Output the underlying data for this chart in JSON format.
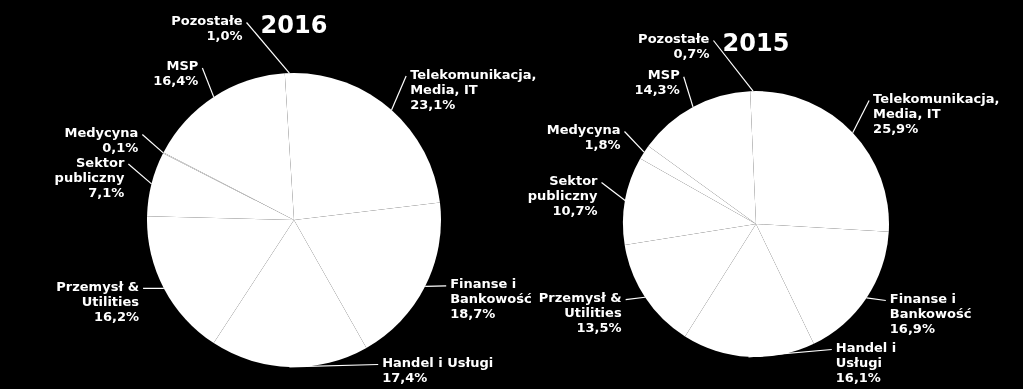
{
  "chart_data": [
    {
      "type": "pie",
      "title": "2016",
      "categories": [
        "Telekomunikacja,\nMedia, IT",
        "Finanse i\nBankowość",
        "Handel i Usługi",
        "Przemysł &\nUtilities",
        "Sektor\npubliczny",
        "Medycyna",
        "MSP",
        "Pozostałe"
      ],
      "values": [
        23.1,
        18.7,
        17.4,
        16.2,
        7.1,
        0.1,
        16.4,
        1.0
      ],
      "value_labels": [
        "23,1%",
        "18,7%",
        "17,4%",
        "16,2%",
        "7,1%",
        "0,1%",
        "16,4%",
        "1,0%"
      ],
      "colors": [
        "#ffffff",
        "#ffffff",
        "#ffffff",
        "#ffffff",
        "#ffffff",
        "#ffffff",
        "#ffffff",
        "#ffffff"
      ]
    },
    {
      "type": "pie",
      "title": "2015",
      "categories": [
        "Telekomunikacja,\nMedia, IT",
        "Finanse i\nBankowość",
        "Handel i\nUsługi",
        "Przemysł &\nUtilities",
        "Sektor\npubliczny",
        "Medycyna",
        "MSP",
        "Pozostałe"
      ],
      "values": [
        25.9,
        16.9,
        16.1,
        13.5,
        10.7,
        1.8,
        14.3,
        0.7
      ],
      "value_labels": [
        "25,9%",
        "16,9%",
        "16,1%",
        "13,5%",
        "10,7%",
        "1,8%",
        "14,3%",
        "0,7%"
      ],
      "colors": [
        "#ffffff",
        "#ffffff",
        "#ffffff",
        "#ffffff",
        "#ffffff",
        "#ffffff",
        "#ffffff",
        "#ffffff"
      ]
    }
  ]
}
